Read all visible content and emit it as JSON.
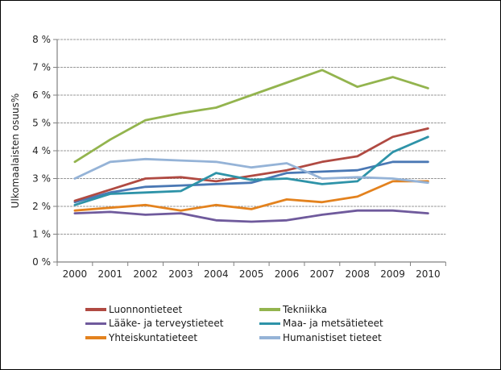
{
  "chart_data": {
    "type": "line",
    "title": "",
    "ylabel": "Ulkomaalaisten osuus%",
    "xlabel": "",
    "ylim": [
      0,
      8
    ],
    "grid": true,
    "yticks": [
      "0 %",
      "1 %",
      "2 %",
      "3 %",
      "4 %",
      "5 %",
      "6 %",
      "7 %",
      "8 %"
    ],
    "x": [
      2000,
      2001,
      2002,
      2003,
      2004,
      2005,
      2006,
      2007,
      2008,
      2009,
      2010
    ],
    "series": [
      {
        "name": "",
        "color": "#4A78B4",
        "in_legend": false,
        "values": [
          2.15,
          2.5,
          2.7,
          2.75,
          2.8,
          2.85,
          3.2,
          3.25,
          3.3,
          3.6,
          3.6
        ]
      },
      {
        "name": "Luonnontieteet",
        "color": "#B04A42",
        "in_legend": true,
        "values": [
          2.2,
          2.6,
          3.0,
          3.05,
          2.9,
          3.1,
          3.3,
          3.6,
          3.8,
          4.5,
          4.8
        ]
      },
      {
        "name": "Tekniikka",
        "color": "#93B44E",
        "in_legend": true,
        "values": [
          3.6,
          4.4,
          5.1,
          5.35,
          5.55,
          6.0,
          6.45,
          6.9,
          6.3,
          6.65,
          6.25
        ]
      },
      {
        "name": "Lääke- ja terveystieteet",
        "color": "#6F5A9C",
        "in_legend": true,
        "values": [
          1.75,
          1.8,
          1.7,
          1.75,
          1.5,
          1.45,
          1.5,
          1.7,
          1.85,
          1.85,
          1.75
        ]
      },
      {
        "name": "Maa- ja metsätieteet",
        "color": "#2E93A8",
        "in_legend": true,
        "values": [
          2.05,
          2.45,
          2.5,
          2.55,
          3.2,
          2.95,
          3.0,
          2.8,
          2.9,
          3.95,
          4.5
        ]
      },
      {
        "name": "Yhteiskuntatieteet",
        "color": "#E3821E",
        "in_legend": true,
        "values": [
          1.85,
          1.95,
          2.05,
          1.85,
          2.05,
          1.9,
          2.25,
          2.15,
          2.35,
          2.9,
          2.9
        ]
      },
      {
        "name": "Humanistiset tieteet",
        "color": "#95B3D7",
        "in_legend": true,
        "values": [
          3.0,
          3.6,
          3.7,
          3.65,
          3.6,
          3.4,
          3.55,
          3.0,
          3.05,
          3.0,
          2.85
        ]
      }
    ],
    "legend": {
      "position": "bottom",
      "columns": [
        [
          "Luonnontieteet",
          "Lääke- ja terveystieteet",
          "Yhteiskuntatieteet"
        ],
        [
          "Tekniikka",
          "Maa- ja metsätieteet",
          "Humanistiset tieteet"
        ]
      ]
    },
    "colors": {
      "gridline": "#9A9A9A",
      "axis": "#808080",
      "tick_text": "#262626"
    }
  }
}
